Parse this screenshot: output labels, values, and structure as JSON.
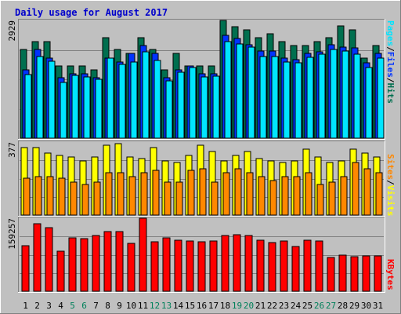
{
  "chart_data": {
    "type": "bar",
    "title": "Daily usage for August 2017",
    "colors": {
      "background": "#c0c0c0",
      "hits": "#006f4f",
      "files": "#0033ff",
      "pages": "#00e5ff",
      "visits": "#ffff00",
      "sites": "#ff8800",
      "kbytes": "#ff0000",
      "title": "#0000cc",
      "weekend_label": "#00805a"
    },
    "categories": [
      "1",
      "2",
      "3",
      "4",
      "5",
      "6",
      "7",
      "8",
      "9",
      "10",
      "11",
      "12",
      "13",
      "14",
      "15",
      "16",
      "17",
      "18",
      "19",
      "20",
      "21",
      "22",
      "23",
      "24",
      "25",
      "26",
      "27",
      "28",
      "29",
      "30",
      "31"
    ],
    "weekend_days": [
      "5",
      "6",
      "12",
      "13",
      "19",
      "20",
      "26",
      "27"
    ],
    "panels": [
      {
        "id": "hits_files_pages",
        "ymax_label": "2929",
        "ymax": 2929,
        "side_label_parts": [
          "Pages",
          "/",
          "Files",
          "/",
          "Hits"
        ],
        "series": [
          {
            "name": "Hits",
            "values": [
              2200,
              2400,
              2400,
              1800,
              1800,
              1800,
              1700,
              2500,
              2200,
              2100,
              2500,
              2200,
              1700,
              2100,
              1800,
              1800,
              1800,
              2929,
              2780,
              2700,
              2500,
              2600,
              2400,
              2300,
              2300,
              2400,
              2500,
              2800,
              2700,
              2000,
              2300
            ]
          },
          {
            "name": "Files",
            "values": [
              1700,
              2200,
              2000,
              1500,
              1600,
              1600,
              1500,
              2000,
              1900,
              2100,
              2300,
              2100,
              1500,
              1700,
              1800,
              1600,
              1600,
              2550,
              2480,
              2330,
              2170,
              2170,
              2000,
              1950,
              2100,
              2150,
              2330,
              2270,
              2250,
              1870,
              2100
            ]
          },
          {
            "name": "Pages",
            "values": [
              1580,
              2040,
              1910,
              1380,
              1560,
              1530,
              1460,
              1990,
              1830,
              1900,
              2140,
              1940,
              1420,
              1650,
              1750,
              1530,
              1540,
              2410,
              2350,
              2260,
              2040,
              2040,
              1900,
              1880,
              2010,
              2080,
              2210,
              2160,
              2080,
              1760,
              2000
            ]
          }
        ]
      },
      {
        "id": "visits_sites",
        "ymax_label": "377",
        "ymax": 377,
        "side_label_parts": [
          "Sites",
          "/",
          "Visits"
        ],
        "series": [
          {
            "name": "Visits",
            "values": [
              350,
              350,
              320,
              310,
              300,
              280,
              300,
              360,
              370,
              300,
              290,
              350,
              280,
              270,
              310,
              360,
              330,
              280,
              310,
              330,
              290,
              280,
              270,
              280,
              340,
              300,
              270,
              280,
              340,
              320,
              300
            ]
          },
          {
            "name": "Sites",
            "values": [
              190,
              200,
              200,
              190,
              170,
              160,
              170,
              220,
              220,
              200,
              220,
              230,
              170,
              170,
              230,
              240,
              170,
              220,
              240,
              220,
              200,
              180,
              200,
              200,
              220,
              160,
              170,
              200,
              270,
              240,
              220
            ]
          }
        ]
      },
      {
        "id": "kbytes",
        "ymax_label": "159257",
        "ymax": 159257,
        "side_label_parts": [
          "KBytes"
        ],
        "series": [
          {
            "name": "KBytes",
            "values": [
              100000,
              148000,
              139000,
              87000,
              116000,
              114000,
              121000,
              130000,
              130000,
              105000,
              159257,
              108000,
              117000,
              111000,
              110000,
              108000,
              110000,
              121000,
              123000,
              121000,
              111000,
              107000,
              110000,
              98000,
              111000,
              109000,
              73000,
              78000,
              76000,
              77000,
              77000
            ]
          }
        ]
      }
    ]
  }
}
